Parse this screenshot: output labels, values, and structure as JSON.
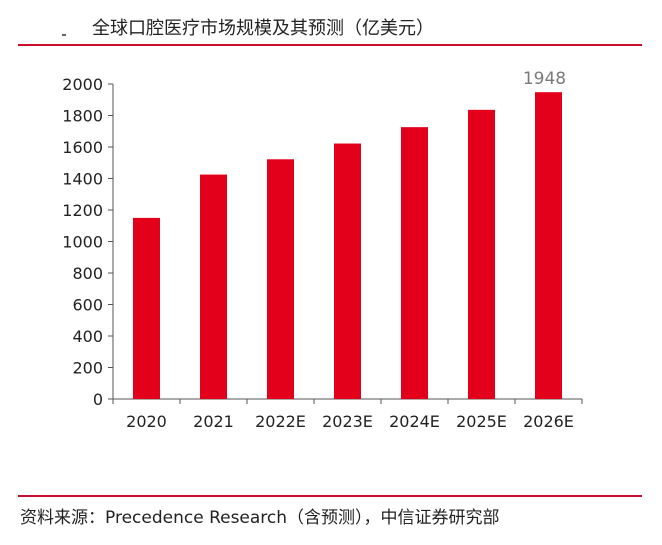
{
  "header": {
    "title": "全球口腔医疗市场规模及其预测（亿美元）"
  },
  "footer": {
    "source": "资料来源：Precedence Research（含预测），中信证券研究部"
  },
  "colors": {
    "bar": "#e3001b",
    "rule": "#c8102e",
    "axis": "#555555"
  },
  "chart_data": {
    "type": "bar",
    "title": "全球口腔医疗市场规模及其预测（亿美元）",
    "categories": [
      "2020",
      "2021",
      "2022E",
      "2023E",
      "2024E",
      "2025E",
      "2026E"
    ],
    "values": [
      1150,
      1425,
      1522,
      1622,
      1726,
      1836,
      1948
    ],
    "data_labels": [
      null,
      null,
      null,
      null,
      null,
      null,
      "1948"
    ],
    "ylim": [
      0,
      2000
    ],
    "yticks": [
      0,
      200,
      400,
      600,
      800,
      1000,
      1200,
      1400,
      1600,
      1800,
      2000
    ],
    "xlabel": "",
    "ylabel": "",
    "grid": false,
    "legend": "none"
  }
}
